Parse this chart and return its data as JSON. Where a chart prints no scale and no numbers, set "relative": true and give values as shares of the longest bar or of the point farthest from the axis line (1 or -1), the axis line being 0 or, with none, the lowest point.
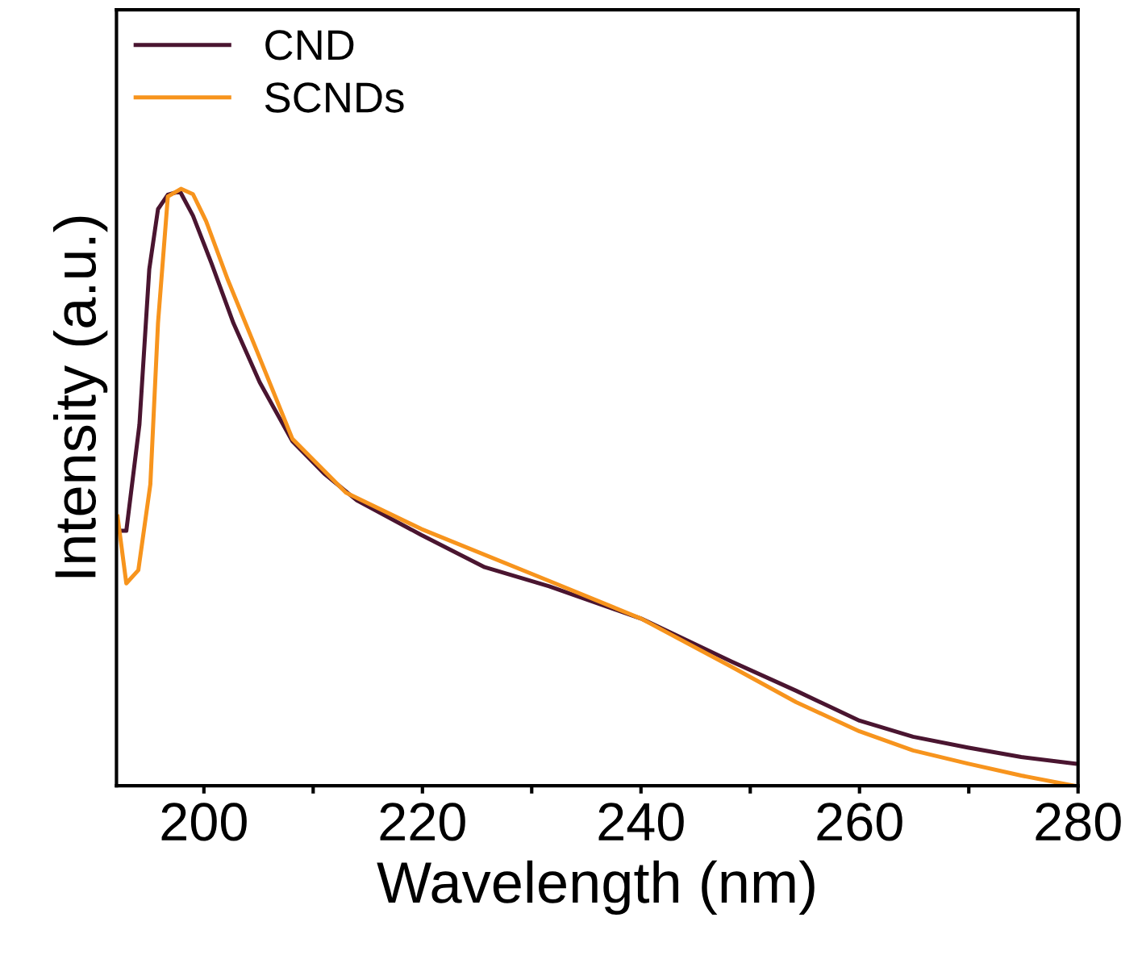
{
  "chart_data": {
    "type": "line",
    "relative": true,
    "xlabel": "Wavelength (nm)",
    "ylabel": "Intensity (a.u.)",
    "xlim": [
      192,
      280
    ],
    "xticks": [
      200,
      {
        "value": 210,
        "label": null
      },
      220,
      {
        "value": 230,
        "label": null
      },
      240,
      {
        "value": 250,
        "label": null
      },
      260,
      {
        "value": 270,
        "label": null
      },
      280
    ],
    "legend": "top left",
    "grid": false,
    "marker": "none",
    "line_style": "solid",
    "series": [
      {
        "name": "CND",
        "color": "#4a1530",
        "x": [
          192.2,
          192.9,
          194.1,
          195.0,
          195.8,
          196.7,
          197.8,
          199.0,
          200.7,
          202.7,
          205.1,
          208.1,
          211.0,
          214.0,
          219.9,
          225.7,
          231.6,
          240.0,
          248.3,
          254.2,
          260.0,
          264.9,
          269.9,
          274.8,
          279.7
        ],
        "values": [
          0.427,
          0.427,
          0.605,
          0.865,
          0.966,
          0.99,
          0.996,
          0.955,
          0.875,
          0.775,
          0.676,
          0.577,
          0.523,
          0.478,
          0.42,
          0.366,
          0.334,
          0.28,
          0.208,
          0.159,
          0.109,
          0.082,
          0.064,
          0.048,
          0.037
        ]
      },
      {
        "name": "SCNDs",
        "color": "#f7941d",
        "x": [
          192.1,
          192.9,
          194.0,
          195.1,
          195.8,
          196.7,
          197.9,
          199.0,
          200.2,
          202.2,
          204.7,
          208.1,
          213.0,
          219.9,
          231.6,
          240.0,
          248.3,
          254.2,
          260.0,
          264.9,
          269.9,
          274.8,
          279.6
        ],
        "values": [
          0.451,
          0.339,
          0.361,
          0.505,
          0.775,
          0.987,
          1.0,
          0.991,
          0.946,
          0.847,
          0.735,
          0.581,
          0.491,
          0.43,
          0.343,
          0.28,
          0.199,
          0.14,
          0.091,
          0.059,
          0.037,
          0.017,
          0.0
        ]
      }
    ]
  }
}
